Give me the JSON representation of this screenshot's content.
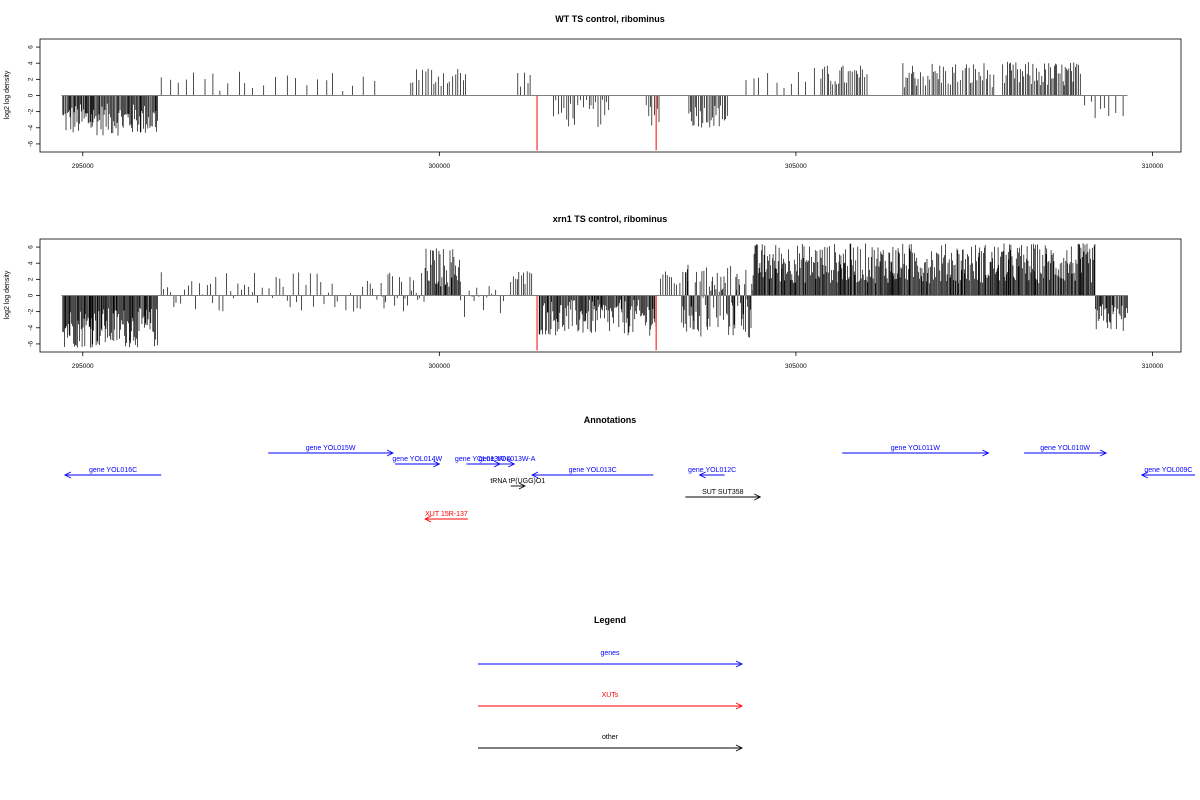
{
  "chart_data": [
    {
      "type": "bar",
      "title": "WT TS control, ribominus",
      "ylabel": "log2 log density",
      "xlabel": "",
      "xlim": [
        294400,
        310400
      ],
      "ylim": [
        -7,
        7
      ],
      "xticks": [
        295000,
        300000,
        305000,
        310000
      ],
      "yticks": [
        -6,
        -4,
        -2,
        0,
        2,
        4,
        6
      ],
      "baseline": {
        "start": 294700,
        "end": 309650,
        "value": 0
      },
      "highlight": [
        {
          "x": 301370,
          "y": -6.8
        },
        {
          "x": 303040,
          "y": -6.8
        }
      ],
      "regions": [
        {
          "start": 294720,
          "end": 296050,
          "min": -5.0,
          "max": -1.0,
          "density": 0.9
        },
        {
          "start": 296100,
          "end": 299200,
          "min": 0.5,
          "max": 3.0,
          "density": 0.1
        },
        {
          "start": 299600,
          "end": 300400,
          "min": 1.0,
          "max": 3.8,
          "density": 0.3
        },
        {
          "start": 301100,
          "end": 301300,
          "min": 1.0,
          "max": 3.3,
          "density": 0.3
        },
        {
          "start": 301600,
          "end": 302400,
          "min": -4.0,
          "max": -0.5,
          "density": 0.35
        },
        {
          "start": 302900,
          "end": 303100,
          "min": -3.8,
          "max": -0.5,
          "density": 0.4
        },
        {
          "start": 303500,
          "end": 304050,
          "min": -4.0,
          "max": -1.0,
          "density": 0.55
        },
        {
          "start": 304300,
          "end": 305350,
          "min": 0.5,
          "max": 3.5,
          "density": 0.12
        },
        {
          "start": 305350,
          "end": 306000,
          "min": 1.0,
          "max": 3.8,
          "density": 0.45
        },
        {
          "start": 306500,
          "end": 307800,
          "min": 1.0,
          "max": 4.2,
          "density": 0.45
        },
        {
          "start": 307900,
          "end": 309000,
          "min": 1.0,
          "max": 4.2,
          "density": 0.6
        },
        {
          "start": 309050,
          "end": 309600,
          "min": -2.8,
          "max": -0.5,
          "density": 0.15
        }
      ]
    },
    {
      "type": "bar",
      "title": "xrn1 TS control, ribominus",
      "ylabel": "log2 log density",
      "xlabel": "",
      "xlim": [
        294400,
        310400
      ],
      "ylim": [
        -7,
        7
      ],
      "xticks": [
        295000,
        300000,
        305000,
        310000
      ],
      "yticks": [
        -6,
        -4,
        -2,
        0,
        2,
        4,
        6
      ],
      "baseline": {
        "start": 294700,
        "end": 309650,
        "value": 0
      },
      "highlight": [
        {
          "x": 301370,
          "y": -6.8
        },
        {
          "x": 303040,
          "y": -6.8
        }
      ],
      "regions": [
        {
          "start": 294720,
          "end": 296050,
          "min": -6.5,
          "max": -1.5,
          "density": 1.0
        },
        {
          "start": 296100,
          "end": 299200,
          "min": -2.0,
          "max": 3.2,
          "density": 0.25
        },
        {
          "start": 299200,
          "end": 299800,
          "min": -3.0,
          "max": 3.0,
          "density": 0.4
        },
        {
          "start": 299800,
          "end": 300300,
          "min": 1.0,
          "max": 6.0,
          "density": 0.85
        },
        {
          "start": 300300,
          "end": 300900,
          "min": -3.0,
          "max": 1.5,
          "density": 0.25
        },
        {
          "start": 301000,
          "end": 301300,
          "min": 1.0,
          "max": 3.2,
          "density": 0.4
        },
        {
          "start": 301400,
          "end": 303050,
          "min": -5.0,
          "max": -0.5,
          "density": 0.9
        },
        {
          "start": 303100,
          "end": 303500,
          "min": 1.0,
          "max": 3.0,
          "density": 0.3
        },
        {
          "start": 303400,
          "end": 304400,
          "min": -5.5,
          "max": 4.0,
          "density": 1.0
        },
        {
          "start": 304400,
          "end": 309200,
          "min": 1.5,
          "max": 6.5,
          "density": 1.0
        },
        {
          "start": 309200,
          "end": 309650,
          "min": -4.5,
          "max": -1.0,
          "density": 0.8
        }
      ]
    }
  ],
  "annotations": {
    "title": "Annotations",
    "items": [
      {
        "label": "gene YOL016C",
        "start": 296100,
        "end": 294750,
        "row": 3,
        "kind": "gene"
      },
      {
        "label": "gene YOL015W",
        "start": 297600,
        "end": 299350,
        "row": 1,
        "kind": "gene"
      },
      {
        "label": "gene YOL014W",
        "start": 299380,
        "end": 300000,
        "row": 2,
        "kind": "gene"
      },
      {
        "label": "gene YOL013W-A",
        "start": 300380,
        "end": 300850,
        "row": 2,
        "kind": "gene"
      },
      {
        "label": "gene YOL013W-A",
        "start": 300850,
        "end": 301050,
        "row": 2,
        "kind": "gene"
      },
      {
        "label": "gene YOL013C",
        "start": 303000,
        "end": 301300,
        "row": 3,
        "kind": "gene"
      },
      {
        "label": "tRNA tP(UGG)O1",
        "start": 301000,
        "end": 301200,
        "row": 4,
        "kind": "other"
      },
      {
        "label": "gene YOL012C",
        "start": 304000,
        "end": 303650,
        "row": 3,
        "kind": "gene"
      },
      {
        "label": "SUT SUT358",
        "start": 303450,
        "end": 304500,
        "row": 5,
        "kind": "other"
      },
      {
        "label": "gene YOL011W",
        "start": 305650,
        "end": 307700,
        "row": 1,
        "kind": "gene"
      },
      {
        "label": "gene YOL010W",
        "start": 308200,
        "end": 309350,
        "row": 1,
        "kind": "gene"
      },
      {
        "label": "gene YOL009C",
        "start": 310600,
        "end": 309850,
        "row": 3,
        "kind": "gene"
      },
      {
        "label": "XUT 15R-137",
        "start": 300400,
        "end": 299800,
        "row": 7,
        "kind": "xut"
      }
    ]
  },
  "legend": {
    "title": "Legend",
    "items": [
      {
        "label": "genes",
        "kind": "gene"
      },
      {
        "label": "XUTs",
        "kind": "xut"
      },
      {
        "label": "other",
        "kind": "other"
      }
    ]
  },
  "colors": {
    "gene": "#0000ff",
    "xut": "#ff0000",
    "other": "#000000",
    "highlight": "#ff0000",
    "baseline": "#808080",
    "bars": "#000000"
  }
}
